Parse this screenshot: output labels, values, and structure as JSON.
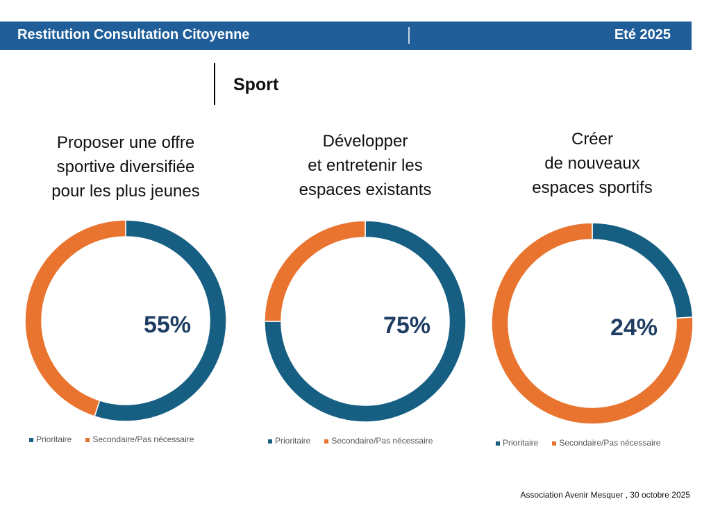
{
  "header": {
    "title": "Restitution Consultation Citoyenne",
    "date": "Eté 2025"
  },
  "section": "Sport",
  "colors": {
    "prioritaire": "#175f82",
    "secondaire": "#e8742f",
    "label": "#1f3d63"
  },
  "chart_data": [
    {
      "type": "pie",
      "variant": "donut",
      "title": [
        "Proposer une offre",
        "sportive diversifiée",
        "pour les plus jeunes"
      ],
      "categories": [
        "Prioritaire",
        "Secondaire/Pas nécessaire"
      ],
      "values": [
        55,
        45
      ],
      "label": "55%",
      "legend": "bottom"
    },
    {
      "type": "pie",
      "variant": "donut",
      "title": [
        "Développer",
        "et entretenir les",
        "espaces existants"
      ],
      "categories": [
        "Prioritaire",
        "Secondaire/Pas nécessaire"
      ],
      "values": [
        75,
        25
      ],
      "label": "75%",
      "legend": "bottom"
    },
    {
      "type": "pie",
      "variant": "donut",
      "title": [
        "Créer",
        "de nouveaux",
        "espaces sportifs"
      ],
      "categories": [
        "Prioritaire",
        "Secondaire/Pas nécessaire"
      ],
      "values": [
        24,
        76
      ],
      "label": "24%",
      "legend": "bottom"
    }
  ],
  "footer": "Association Avenir Mesquer , 30 octobre 2025"
}
